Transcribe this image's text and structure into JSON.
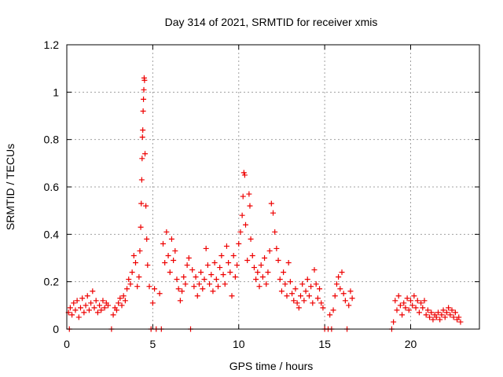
{
  "chart_data": {
    "type": "scatter",
    "title": "Day 314 of 2021, SRMTID for receiver xmis",
    "xlabel": "GPS time / hours",
    "ylabel": "SRMTID / TECUs",
    "xlim": [
      0,
      24
    ],
    "ylim": [
      0,
      1.2
    ],
    "xticks": [
      {
        "value": 0,
        "label": "0"
      },
      {
        "value": 5,
        "label": "5"
      },
      {
        "value": 10,
        "label": "10"
      },
      {
        "value": 15,
        "label": "15"
      },
      {
        "value": 20,
        "label": "20"
      }
    ],
    "yticks": [
      {
        "value": 0,
        "label": "0"
      },
      {
        "value": 0.2,
        "label": "0.2"
      },
      {
        "value": 0.4,
        "label": "0.4"
      },
      {
        "value": 0.6,
        "label": "0.6"
      },
      {
        "value": 0.8,
        "label": "0.8"
      },
      {
        "value": 1,
        "label": "1"
      },
      {
        "value": 1.2,
        "label": "1.2"
      }
    ],
    "grid": true,
    "marker": "+",
    "color": "#ee0000",
    "series": [
      {
        "name": "SRMTID",
        "points": [
          [
            0.1,
            0.07
          ],
          [
            0.15,
            0.0
          ],
          [
            0.2,
            0.09
          ],
          [
            0.3,
            0.06
          ],
          [
            0.4,
            0.11
          ],
          [
            0.5,
            0.08
          ],
          [
            0.6,
            0.12
          ],
          [
            0.7,
            0.05
          ],
          [
            0.8,
            0.09
          ],
          [
            0.9,
            0.13
          ],
          [
            1.0,
            0.07
          ],
          [
            1.1,
            0.1
          ],
          [
            1.2,
            0.14
          ],
          [
            1.3,
            0.08
          ],
          [
            1.4,
            0.11
          ],
          [
            1.5,
            0.16
          ],
          [
            1.6,
            0.09
          ],
          [
            1.7,
            0.12
          ],
          [
            1.8,
            0.07
          ],
          [
            1.9,
            0.1
          ],
          [
            2.0,
            0.08
          ],
          [
            2.1,
            0.12
          ],
          [
            2.2,
            0.09
          ],
          [
            2.3,
            0.11
          ],
          [
            2.4,
            0.1
          ],
          [
            2.6,
            0.0
          ],
          [
            2.7,
            0.06
          ],
          [
            2.8,
            0.09
          ],
          [
            2.9,
            0.08
          ],
          [
            3.0,
            0.11
          ],
          [
            3.1,
            0.13
          ],
          [
            3.2,
            0.1
          ],
          [
            3.3,
            0.14
          ],
          [
            3.4,
            0.12
          ],
          [
            3.5,
            0.17
          ],
          [
            3.6,
            0.21
          ],
          [
            3.7,
            0.19
          ],
          [
            3.8,
            0.24
          ],
          [
            3.9,
            0.31
          ],
          [
            4.0,
            0.28
          ],
          [
            4.1,
            0.18
          ],
          [
            4.2,
            0.22
          ],
          [
            4.25,
            0.33
          ],
          [
            4.3,
            0.43
          ],
          [
            4.33,
            0.53
          ],
          [
            4.36,
            0.63
          ],
          [
            4.38,
            0.72
          ],
          [
            4.4,
            0.81
          ],
          [
            4.42,
            0.84
          ],
          [
            4.44,
            0.92
          ],
          [
            4.46,
            0.97
          ],
          [
            4.48,
            1.01
          ],
          [
            4.5,
            1.06
          ],
          [
            4.52,
            1.05
          ],
          [
            4.55,
            0.74
          ],
          [
            4.6,
            0.52
          ],
          [
            4.65,
            0.38
          ],
          [
            4.7,
            0.27
          ],
          [
            4.8,
            0.18
          ],
          [
            4.9,
            0.0
          ],
          [
            5.0,
            0.11
          ],
          [
            5.1,
            0.17
          ],
          [
            5.2,
            0.0
          ],
          [
            5.4,
            0.15
          ],
          [
            5.5,
            0.0
          ],
          [
            5.6,
            0.36
          ],
          [
            5.7,
            0.28
          ],
          [
            5.8,
            0.41
          ],
          [
            5.9,
            0.31
          ],
          [
            6.0,
            0.24
          ],
          [
            6.1,
            0.38
          ],
          [
            6.2,
            0.29
          ],
          [
            6.3,
            0.33
          ],
          [
            6.4,
            0.21
          ],
          [
            6.5,
            0.17
          ],
          [
            6.6,
            0.12
          ],
          [
            6.7,
            0.16
          ],
          [
            6.8,
            0.22
          ],
          [
            6.9,
            0.19
          ],
          [
            7.0,
            0.27
          ],
          [
            7.1,
            0.3
          ],
          [
            7.2,
            0.0
          ],
          [
            7.3,
            0.25
          ],
          [
            7.4,
            0.18
          ],
          [
            7.5,
            0.22
          ],
          [
            7.6,
            0.14
          ],
          [
            7.7,
            0.19
          ],
          [
            7.8,
            0.24
          ],
          [
            7.9,
            0.17
          ],
          [
            8.0,
            0.21
          ],
          [
            8.1,
            0.34
          ],
          [
            8.2,
            0.27
          ],
          [
            8.3,
            0.19
          ],
          [
            8.4,
            0.23
          ],
          [
            8.5,
            0.16
          ],
          [
            8.6,
            0.28
          ],
          [
            8.7,
            0.21
          ],
          [
            8.8,
            0.18
          ],
          [
            8.9,
            0.26
          ],
          [
            9.0,
            0.31
          ],
          [
            9.1,
            0.23
          ],
          [
            9.2,
            0.19
          ],
          [
            9.3,
            0.35
          ],
          [
            9.4,
            0.28
          ],
          [
            9.5,
            0.24
          ],
          [
            9.6,
            0.14
          ],
          [
            9.7,
            0.31
          ],
          [
            9.8,
            0.22
          ],
          [
            9.9,
            0.27
          ],
          [
            10.0,
            0.36
          ],
          [
            10.1,
            0.41
          ],
          [
            10.2,
            0.48
          ],
          [
            10.25,
            0.56
          ],
          [
            10.3,
            0.66
          ],
          [
            10.35,
            0.65
          ],
          [
            10.4,
            0.44
          ],
          [
            10.5,
            0.29
          ],
          [
            10.6,
            0.57
          ],
          [
            10.65,
            0.52
          ],
          [
            10.7,
            0.38
          ],
          [
            10.8,
            0.31
          ],
          [
            10.9,
            0.26
          ],
          [
            11.0,
            0.21
          ],
          [
            11.1,
            0.24
          ],
          [
            11.2,
            0.18
          ],
          [
            11.3,
            0.27
          ],
          [
            11.4,
            0.22
          ],
          [
            11.5,
            0.3
          ],
          [
            11.6,
            0.19
          ],
          [
            11.7,
            0.24
          ],
          [
            11.8,
            0.33
          ],
          [
            11.9,
            0.53
          ],
          [
            12.0,
            0.49
          ],
          [
            12.1,
            0.41
          ],
          [
            12.2,
            0.34
          ],
          [
            12.3,
            0.29
          ],
          [
            12.4,
            0.21
          ],
          [
            12.5,
            0.16
          ],
          [
            12.6,
            0.24
          ],
          [
            12.7,
            0.19
          ],
          [
            12.8,
            0.14
          ],
          [
            12.9,
            0.28
          ],
          [
            13.0,
            0.2
          ],
          [
            13.1,
            0.15
          ],
          [
            13.2,
            0.12
          ],
          [
            13.3,
            0.17
          ],
          [
            13.4,
            0.11
          ],
          [
            13.5,
            0.09
          ],
          [
            13.6,
            0.14
          ],
          [
            13.7,
            0.19
          ],
          [
            13.8,
            0.12
          ],
          [
            13.9,
            0.16
          ],
          [
            14.0,
            0.21
          ],
          [
            14.1,
            0.14
          ],
          [
            14.2,
            0.18
          ],
          [
            14.3,
            0.11
          ],
          [
            14.4,
            0.25
          ],
          [
            14.5,
            0.19
          ],
          [
            14.6,
            0.13
          ],
          [
            14.7,
            0.17
          ],
          [
            14.8,
            0.11
          ],
          [
            14.9,
            0.09
          ],
          [
            15.0,
            0.0
          ],
          [
            15.2,
            0.0
          ],
          [
            15.3,
            0.06
          ],
          [
            15.4,
            0.0
          ],
          [
            15.5,
            0.08
          ],
          [
            15.6,
            0.14
          ],
          [
            15.7,
            0.19
          ],
          [
            15.8,
            0.22
          ],
          [
            15.9,
            0.17
          ],
          [
            16.0,
            0.24
          ],
          [
            16.1,
            0.15
          ],
          [
            16.2,
            0.12
          ],
          [
            16.3,
            0.0
          ],
          [
            16.4,
            0.1
          ],
          [
            16.5,
            0.16
          ],
          [
            16.6,
            0.13
          ],
          [
            18.9,
            0.0
          ],
          [
            19.0,
            0.03
          ],
          [
            19.1,
            0.12
          ],
          [
            19.2,
            0.08
          ],
          [
            19.3,
            0.14
          ],
          [
            19.4,
            0.1
          ],
          [
            19.5,
            0.06
          ],
          [
            19.6,
            0.11
          ],
          [
            19.7,
            0.09
          ],
          [
            19.8,
            0.13
          ],
          [
            19.9,
            0.08
          ],
          [
            20.0,
            0.12
          ],
          [
            20.1,
            0.1
          ],
          [
            20.2,
            0.14
          ],
          [
            20.3,
            0.09
          ],
          [
            20.4,
            0.12
          ],
          [
            20.5,
            0.07
          ],
          [
            20.6,
            0.11
          ],
          [
            20.7,
            0.09
          ],
          [
            20.8,
            0.12
          ],
          [
            20.9,
            0.06
          ],
          [
            21.0,
            0.08
          ],
          [
            21.1,
            0.05
          ],
          [
            21.2,
            0.07
          ],
          [
            21.3,
            0.04
          ],
          [
            21.4,
            0.06
          ],
          [
            21.5,
            0.05
          ],
          [
            21.6,
            0.07
          ],
          [
            21.7,
            0.04
          ],
          [
            21.8,
            0.06
          ],
          [
            21.9,
            0.08
          ],
          [
            22.0,
            0.05
          ],
          [
            22.1,
            0.07
          ],
          [
            22.2,
            0.09
          ],
          [
            22.3,
            0.06
          ],
          [
            22.4,
            0.08
          ],
          [
            22.5,
            0.05
          ],
          [
            22.6,
            0.07
          ],
          [
            22.7,
            0.04
          ],
          [
            22.8,
            0.05
          ],
          [
            22.9,
            0.03
          ]
        ]
      }
    ]
  }
}
